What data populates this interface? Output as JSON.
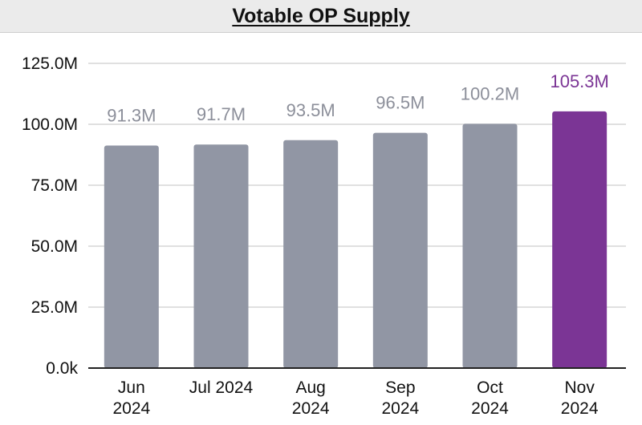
{
  "header": {
    "title": "Votable OP Supply"
  },
  "colors": {
    "bar": "#9196a4",
    "highlight": "#7b3595",
    "label": "#8c8f9a",
    "grid": "#d6d6d6",
    "axis": "#222222"
  },
  "chart_data": {
    "type": "bar",
    "title": "Votable OP Supply",
    "xlabel": "",
    "ylabel": "",
    "categories": [
      [
        "Jun",
        "2024"
      ],
      [
        "Jul 2024"
      ],
      [
        "Aug",
        "2024"
      ],
      [
        "Sep",
        "2024"
      ],
      [
        "Oct",
        "2024"
      ],
      [
        "Nov",
        "2024"
      ]
    ],
    "values": [
      91.3,
      91.7,
      93.5,
      96.5,
      100.2,
      105.3
    ],
    "value_labels": [
      "91.3M",
      "91.7M",
      "93.5M",
      "96.5M",
      "100.2M",
      "105.3M"
    ],
    "highlight_index": 5,
    "ylim": [
      0,
      125
    ],
    "yticks": [
      0,
      25,
      50,
      75,
      100,
      125
    ],
    "ytick_labels": [
      "0.0k",
      "25.0M",
      "50.0M",
      "75.0M",
      "100.0M",
      "125.0M"
    ],
    "grid": true,
    "legend": "none"
  }
}
